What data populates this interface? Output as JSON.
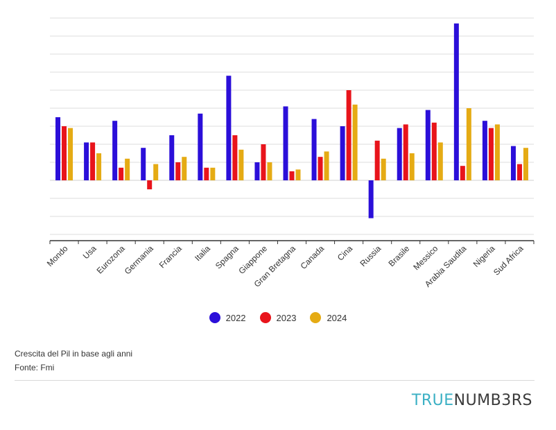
{
  "chart_data": {
    "type": "bar",
    "title": "",
    "xlabel": "",
    "ylabel": "",
    "ylim": [
      -3.5,
      9
    ],
    "grid": true,
    "legend_position": "bottom-center",
    "categories": [
      "Mondo",
      "Usa",
      "Eurozona",
      "Germania",
      "Francia",
      "Italia",
      "Spagna",
      "Giappone",
      "Gran Bretagna",
      "Canada",
      "Cina",
      "Russia",
      "Brasile",
      "Messico",
      "Arabia Saudita",
      "Nigeria",
      "Sud Africa"
    ],
    "series": [
      {
        "name": "2022",
        "color": "#2b0fd9",
        "values": [
          3.5,
          2.1,
          3.3,
          1.8,
          2.5,
          3.7,
          5.8,
          1.0,
          4.1,
          3.4,
          3.0,
          -2.1,
          2.9,
          3.9,
          8.7,
          3.3,
          1.9
        ]
      },
      {
        "name": "2023",
        "color": "#e8141b",
        "values": [
          3.0,
          2.1,
          0.7,
          -0.5,
          1.0,
          0.7,
          2.5,
          2.0,
          0.5,
          1.3,
          5.0,
          2.2,
          3.1,
          3.2,
          0.8,
          2.9,
          0.9
        ]
      },
      {
        "name": "2024",
        "color": "#e5ab14",
        "values": [
          2.9,
          1.5,
          1.2,
          0.9,
          1.3,
          0.7,
          1.7,
          1.0,
          0.6,
          1.6,
          4.2,
          1.2,
          1.5,
          2.1,
          4.0,
          3.1,
          1.8
        ]
      }
    ]
  },
  "caption": {
    "line1": "Crescita del Pil in base agli anni",
    "line2": "Fonte: Fmi"
  },
  "logo": {
    "part1": "TRUE",
    "part2": "NUMB3RS"
  }
}
